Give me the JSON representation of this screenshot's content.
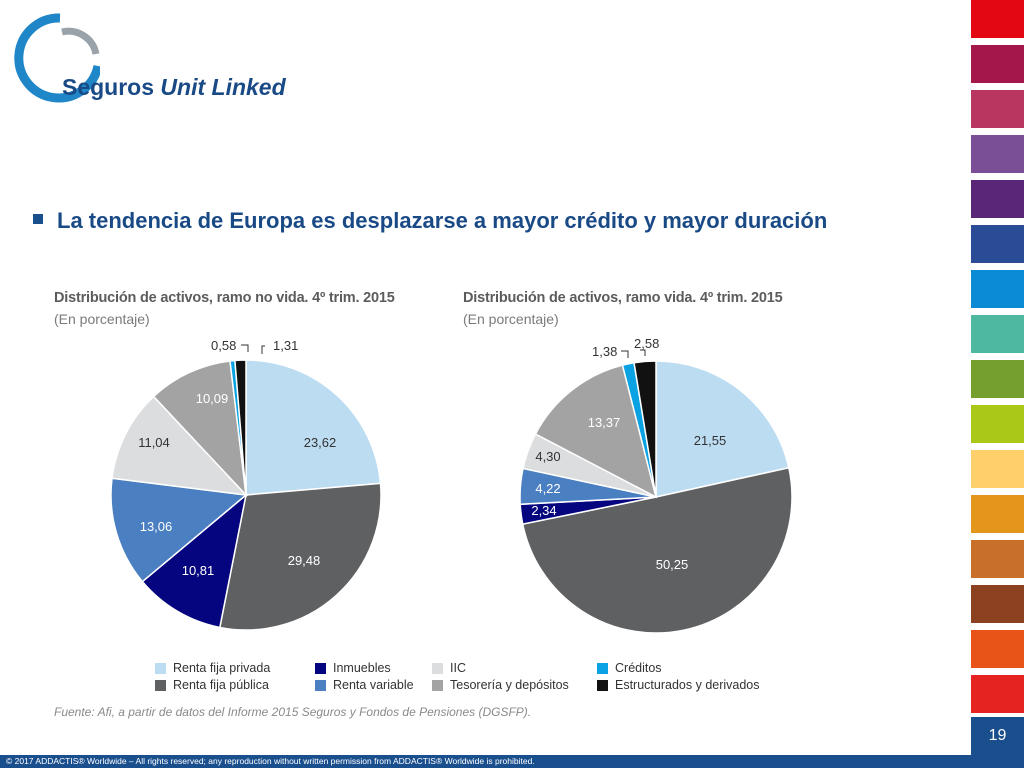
{
  "header": {
    "title_main": "Seguros",
    "title_italic": "Unit Linked"
  },
  "bullet": "La tendencia de Europa es desplazarse a mayor crédito y mayor duración",
  "page_number": "19",
  "footer": "© 2017 ADDACTIS® Worldwide – All rights reserved; any reproduction without written permission from ADDACTIS® Worldwide is prohibited.",
  "sidebar_colors": [
    "#e30613",
    "#a3174a",
    "#b8365f",
    "#7a4f96",
    "#5a2677",
    "#2a4b96",
    "#0a8bd3",
    "#4fb8a0",
    "#76a02e",
    "#a9c817",
    "#fdd06b",
    "#e3951c",
    "#c8702a",
    "#8c4220",
    "#e85417",
    "#e52320"
  ],
  "source": "Fuente: Afi, a partir de datos del Informe 2015 Seguros y Fondos de Pensiones (DGSFP).",
  "legend": [
    {
      "label": "Renta fija privada",
      "color": "#bcdcf2"
    },
    {
      "label": "Renta fija pública",
      "color": "#5f6062"
    },
    {
      "label": "Inmuebles",
      "color": "#05067f"
    },
    {
      "label": "Renta variable",
      "color": "#4a7fc1"
    },
    {
      "label": "IIC",
      "color": "#dcdddf"
    },
    {
      "label": "Tesorería y depósitos",
      "color": "#a3a3a3"
    },
    {
      "label": "Créditos",
      "color": "#0aa2e2"
    },
    {
      "label": "Estructurados y derivados",
      "color": "#111111"
    }
  ],
  "chart_data": [
    {
      "type": "pie",
      "title": "Distribución de activos, ramo no vida. 4º trim. 2015",
      "subtitle": "(En porcentaje)",
      "categories": [
        "Renta fija privada",
        "Renta fija pública",
        "Inmuebles",
        "Renta variable",
        "IIC",
        "Tesorería y depósitos",
        "Créditos",
        "Estructurados y derivados"
      ],
      "values": [
        23.62,
        29.48,
        10.81,
        13.06,
        11.04,
        10.09,
        0.58,
        1.31
      ],
      "value_labels": [
        "23,62",
        "29,48",
        "10,81",
        "13,06",
        "11,04",
        "10,09",
        "0,58",
        "1,31"
      ]
    },
    {
      "type": "pie",
      "title": "Distribución de activos, ramo vida. 4º trim. 2015",
      "subtitle": "(En porcentaje)",
      "categories": [
        "Renta fija privada",
        "Renta fija pública",
        "Inmuebles",
        "Renta variable",
        "IIC",
        "Tesorería y depósitos",
        "Créditos",
        "Estructurados y derivados"
      ],
      "values": [
        21.55,
        50.25,
        2.34,
        4.22,
        4.3,
        13.37,
        1.38,
        2.58
      ],
      "value_labels": [
        "21,55",
        "50,25",
        "2,34",
        "4,22",
        "4,30",
        "13,37",
        "1,38",
        "2,58"
      ]
    }
  ]
}
